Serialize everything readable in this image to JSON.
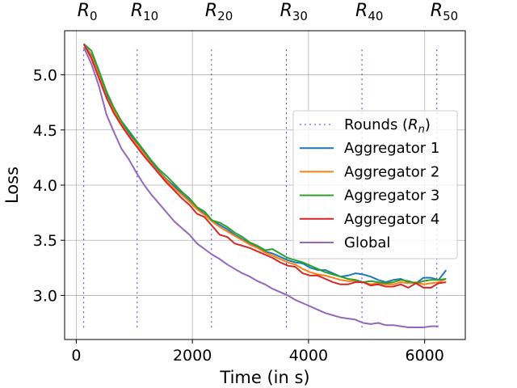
{
  "chart_data": {
    "type": "line",
    "title": "",
    "xlabel": "Time (in s)",
    "ylabel": "Loss",
    "xlim": [
      -200,
      6700
    ],
    "ylim": [
      2.6,
      5.4
    ],
    "xticks": [
      0,
      2000,
      4000,
      6000
    ],
    "xtick_labels": [
      "0",
      "2000",
      "4000",
      "6000"
    ],
    "yticks": [
      3.0,
      3.5,
      4.0,
      4.5,
      5.0
    ],
    "ytick_labels": [
      "3.0",
      "3.5",
      "4.0",
      "4.5",
      "5.0"
    ],
    "grid": true,
    "legend_position": "center-right",
    "rounds": {
      "label": "Rounds (R_n)",
      "label_base": "Rounds (",
      "label_var": "R",
      "label_sub": "n",
      "label_close": ")",
      "color": "#0000ff",
      "x": [
        130,
        1050,
        2330,
        3620,
        4920,
        6210
      ],
      "y_range": [
        2.7,
        5.23
      ],
      "markers": [
        {
          "base": "R",
          "sub": "0"
        },
        {
          "base": "R",
          "sub": "10"
        },
        {
          "base": "R",
          "sub": "20"
        },
        {
          "base": "R",
          "sub": "30"
        },
        {
          "base": "R",
          "sub": "40"
        },
        {
          "base": "R",
          "sub": "50"
        }
      ]
    },
    "series": [
      {
        "name": "Aggregator 1",
        "color": "#1f77b4",
        "x": [
          130,
          260,
          390,
          520,
          650,
          780,
          910,
          1040,
          1170,
          1300,
          1430,
          1560,
          1690,
          1820,
          1950,
          2080,
          2210,
          2340,
          2470,
          2600,
          2730,
          2860,
          2990,
          3120,
          3250,
          3380,
          3510,
          3640,
          3770,
          3900,
          4030,
          4160,
          4290,
          4420,
          4550,
          4680,
          4810,
          4940,
          5070,
          5200,
          5330,
          5460,
          5590,
          5720,
          5850,
          5980,
          6110,
          6240,
          6370
        ],
        "values": [
          5.28,
          5.18,
          5.0,
          4.82,
          4.68,
          4.57,
          4.47,
          4.38,
          4.29,
          4.2,
          4.12,
          4.05,
          3.99,
          3.92,
          3.86,
          3.79,
          3.74,
          3.68,
          3.64,
          3.6,
          3.55,
          3.51,
          3.47,
          3.44,
          3.4,
          3.38,
          3.35,
          3.32,
          3.3,
          3.29,
          3.25,
          3.23,
          3.23,
          3.2,
          3.17,
          3.18,
          3.2,
          3.19,
          3.17,
          3.14,
          3.12,
          3.14,
          3.15,
          3.12,
          3.11,
          3.16,
          3.16,
          3.14,
          3.23
        ]
      },
      {
        "name": "Aggregator 2",
        "color": "#ff7f0e",
        "x": [
          130,
          260,
          390,
          520,
          650,
          780,
          910,
          1040,
          1170,
          1300,
          1430,
          1560,
          1690,
          1820,
          1950,
          2080,
          2210,
          2340,
          2470,
          2600,
          2730,
          2860,
          2990,
          3120,
          3250,
          3380,
          3510,
          3640,
          3770,
          3900,
          4030,
          4160,
          4290,
          4420,
          4550,
          4680,
          4810,
          4940,
          5070,
          5200,
          5330,
          5460,
          5590,
          5720,
          5850,
          5980,
          6110,
          6240,
          6370
        ],
        "values": [
          5.28,
          5.17,
          4.99,
          4.8,
          4.67,
          4.55,
          4.45,
          4.37,
          4.28,
          4.19,
          4.11,
          4.04,
          3.97,
          3.91,
          3.85,
          3.78,
          3.73,
          3.67,
          3.62,
          3.58,
          3.54,
          3.5,
          3.46,
          3.43,
          3.39,
          3.36,
          3.33,
          3.3,
          3.28,
          3.24,
          3.21,
          3.19,
          3.18,
          3.16,
          3.14,
          3.13,
          3.13,
          3.12,
          3.1,
          3.11,
          3.1,
          3.1,
          3.12,
          3.11,
          3.12,
          3.1,
          3.11,
          3.12,
          3.15
        ]
      },
      {
        "name": "Aggregator 3",
        "color": "#2ca02c",
        "x": [
          130,
          260,
          390,
          520,
          650,
          780,
          910,
          1040,
          1170,
          1300,
          1430,
          1560,
          1690,
          1820,
          1950,
          2080,
          2210,
          2340,
          2470,
          2600,
          2730,
          2860,
          2990,
          3120,
          3250,
          3380,
          3510,
          3640,
          3770,
          3900,
          4030,
          4160,
          4290,
          4420,
          4550,
          4680,
          4810,
          4940,
          5070,
          5200,
          5330,
          5460,
          5590,
          5720,
          5850,
          5980,
          6110,
          6240,
          6370
        ],
        "values": [
          5.28,
          5.22,
          5.04,
          4.85,
          4.7,
          4.58,
          4.49,
          4.4,
          4.31,
          4.22,
          4.14,
          4.08,
          4.01,
          3.94,
          3.88,
          3.8,
          3.76,
          3.68,
          3.66,
          3.62,
          3.57,
          3.53,
          3.48,
          3.45,
          3.41,
          3.42,
          3.38,
          3.34,
          3.32,
          3.3,
          3.27,
          3.24,
          3.21,
          3.19,
          3.17,
          3.15,
          3.14,
          3.12,
          3.13,
          3.12,
          3.11,
          3.12,
          3.14,
          3.13,
          3.11,
          3.13,
          3.14,
          3.14,
          3.15
        ]
      },
      {
        "name": "Aggregator 4",
        "color": "#d62728",
        "x": [
          130,
          260,
          390,
          520,
          650,
          780,
          910,
          1040,
          1170,
          1300,
          1430,
          1560,
          1690,
          1820,
          1950,
          2080,
          2210,
          2340,
          2470,
          2600,
          2730,
          2860,
          2990,
          3120,
          3250,
          3380,
          3510,
          3640,
          3770,
          3900,
          4030,
          4160,
          4290,
          4420,
          4550,
          4680,
          4810,
          4940,
          5070,
          5200,
          5330,
          5460,
          5590,
          5720,
          5850,
          5980,
          6110,
          6240,
          6370
        ],
        "values": [
          5.28,
          5.15,
          4.97,
          4.79,
          4.65,
          4.54,
          4.44,
          4.35,
          4.26,
          4.18,
          4.1,
          4.02,
          3.95,
          3.88,
          3.82,
          3.74,
          3.71,
          3.63,
          3.55,
          3.53,
          3.47,
          3.45,
          3.43,
          3.4,
          3.37,
          3.34,
          3.3,
          3.27,
          3.26,
          3.2,
          3.18,
          3.18,
          3.15,
          3.12,
          3.1,
          3.1,
          3.12,
          3.12,
          3.09,
          3.1,
          3.08,
          3.08,
          3.1,
          3.07,
          3.11,
          3.07,
          3.07,
          3.11,
          3.12
        ]
      },
      {
        "name": "Global",
        "color": "#9467bd",
        "x": [
          130,
          260,
          390,
          520,
          650,
          780,
          910,
          1040,
          1170,
          1300,
          1430,
          1560,
          1690,
          1820,
          1950,
          2080,
          2210,
          2340,
          2470,
          2600,
          2730,
          2860,
          2990,
          3120,
          3250,
          3380,
          3510,
          3640,
          3770,
          3900,
          4030,
          4160,
          4290,
          4420,
          4550,
          4680,
          4810,
          4940,
          5070,
          5200,
          5330,
          5460,
          5590,
          5720,
          5850,
          5980,
          6110,
          6240
        ],
        "values": [
          5.25,
          5.1,
          4.9,
          4.64,
          4.48,
          4.33,
          4.23,
          4.11,
          4.0,
          3.91,
          3.83,
          3.75,
          3.67,
          3.61,
          3.55,
          3.47,
          3.42,
          3.37,
          3.33,
          3.28,
          3.24,
          3.2,
          3.17,
          3.13,
          3.1,
          3.06,
          3.03,
          3.0,
          2.96,
          2.93,
          2.9,
          2.87,
          2.84,
          2.82,
          2.8,
          2.79,
          2.78,
          2.75,
          2.74,
          2.75,
          2.73,
          2.73,
          2.72,
          2.71,
          2.71,
          2.71,
          2.72,
          2.72
        ]
      }
    ]
  }
}
